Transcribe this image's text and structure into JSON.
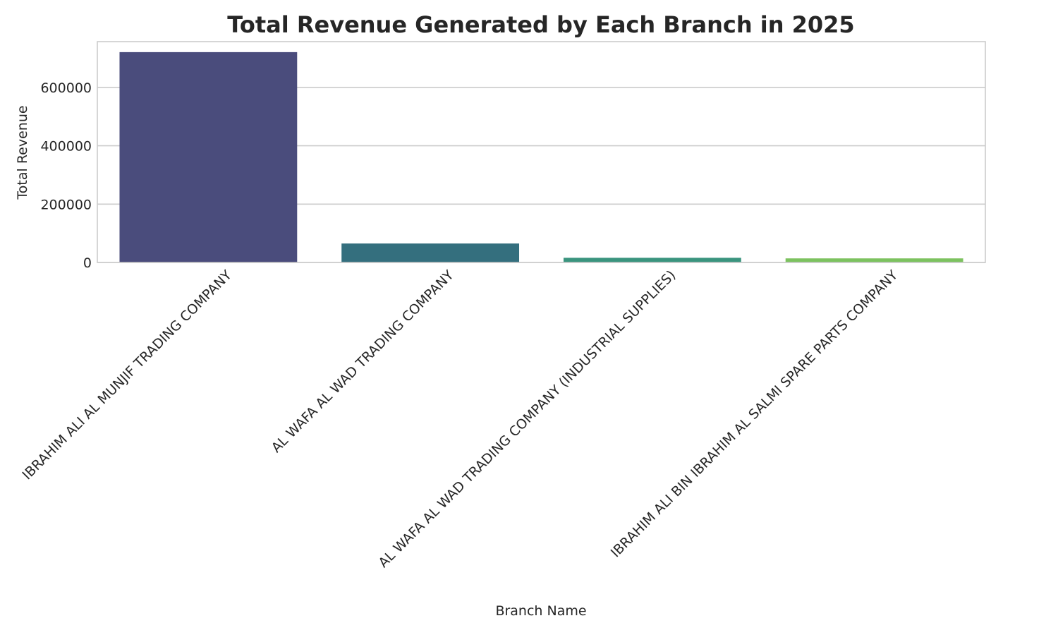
{
  "chart_data": {
    "type": "bar",
    "title": "Total Revenue Generated by Each Branch in 2025",
    "xlabel": "Branch Name",
    "ylabel": "Total Revenue",
    "categories": [
      "IBRAHIM ALI AL MUNJIF TRADING COMPANY",
      "AL WAFA AL WAD TRADING COMPANY",
      "AL WAFA AL WAD TRADING COMPANY (INDUSTRIAL SUPPLIES)",
      "IBRAHIM ALI BIN IBRAHIM AL SALMI SPARE PARTS COMPANY"
    ],
    "values": [
      721000,
      65000,
      16000,
      14000
    ],
    "colors": [
      "#4a4c7c",
      "#346f7e",
      "#3a947e",
      "#7cc25f"
    ],
    "yticks": [
      0,
      200000,
      400000,
      600000
    ],
    "ytick_labels": [
      "0",
      "200000",
      "400000",
      "600000"
    ],
    "ylim": [
      0,
      757000
    ],
    "grid": true,
    "legend": "none"
  }
}
